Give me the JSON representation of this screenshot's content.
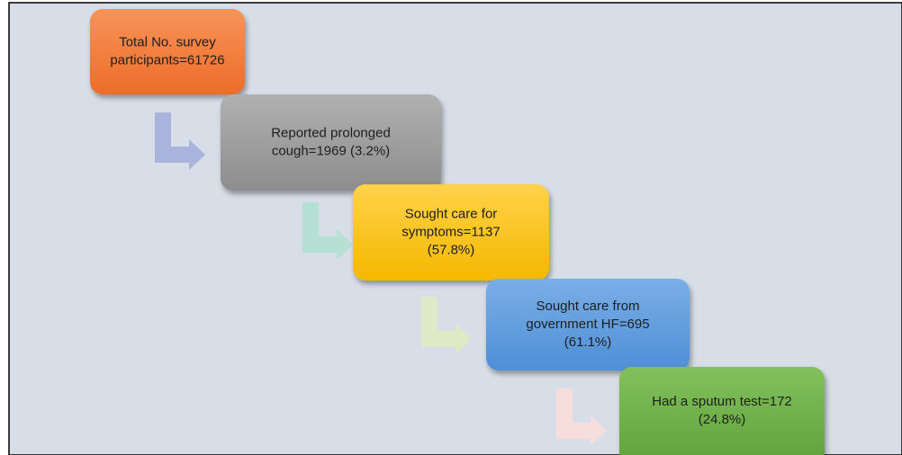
{
  "nodes": [
    {
      "lines": [
        "Total No. survey",
        "participants=61726"
      ]
    },
    {
      "lines": [
        "Reported prolonged",
        "cough=1969 (3.2%)"
      ]
    },
    {
      "lines": [
        "Sought care for",
        "symptoms=1137",
        "(57.8%)"
      ]
    },
    {
      "lines": [
        "Sought care from",
        "government HF=695",
        "(61.1%)"
      ]
    },
    {
      "lines": [
        "Had a sputum test=172",
        "(24.8%)"
      ]
    }
  ]
}
